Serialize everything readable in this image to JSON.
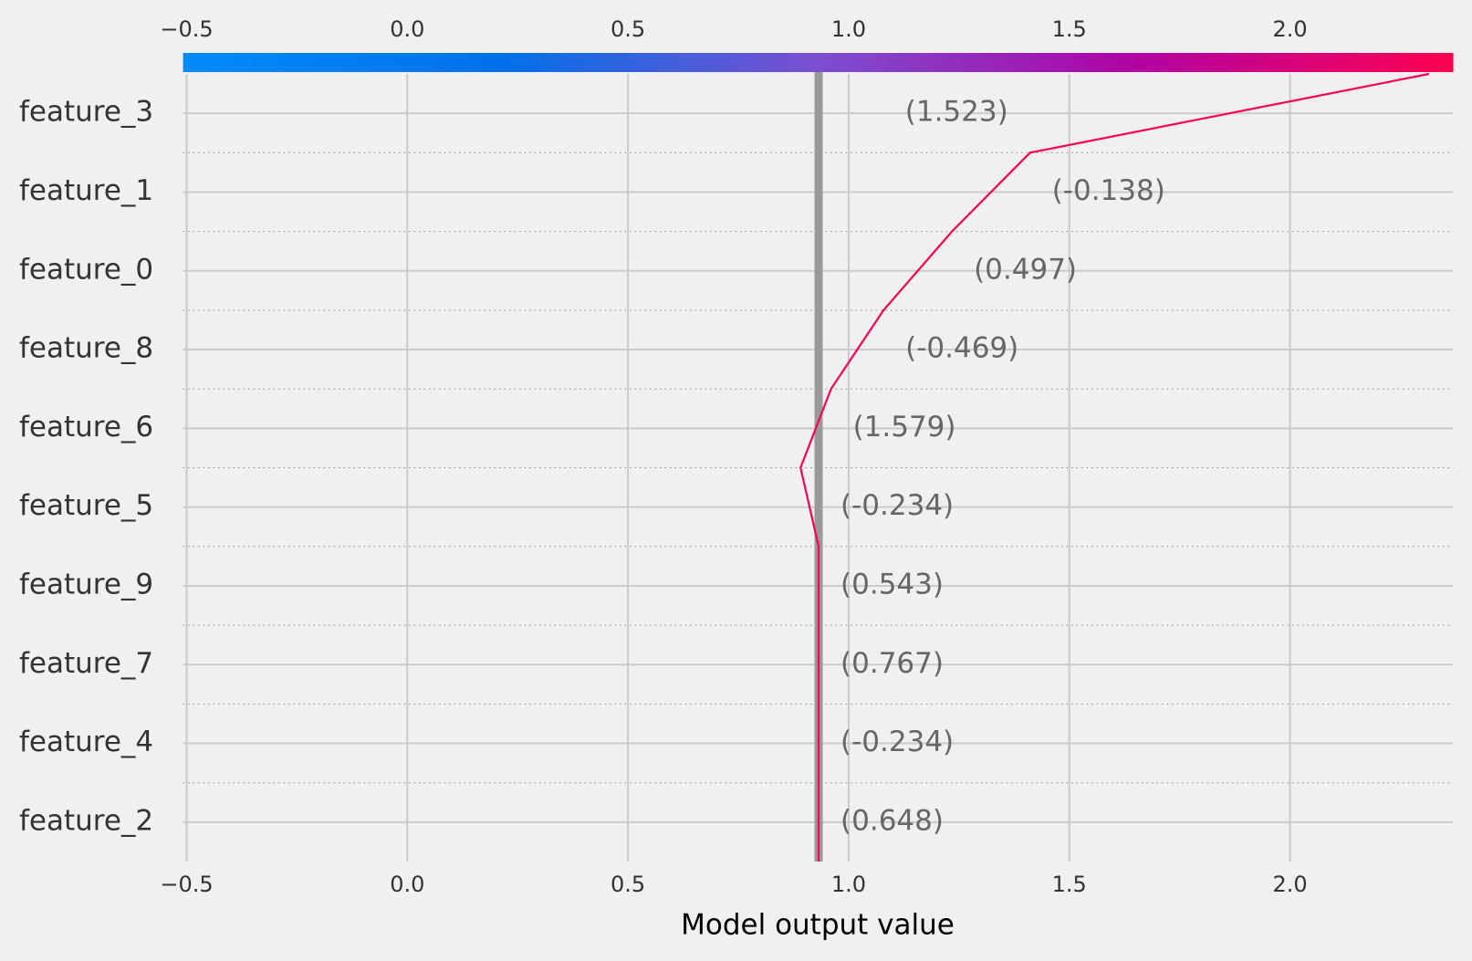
{
  "chart_data": {
    "type": "decision",
    "xlabel": "Model output value",
    "features": [
      "feature_3",
      "feature_1",
      "feature_0",
      "feature_8",
      "feature_6",
      "feature_5",
      "feature_9",
      "feature_7",
      "feature_4",
      "feature_2"
    ],
    "feature_values": [
      1.523,
      -0.138,
      0.497,
      -0.469,
      1.579,
      -0.234,
      0.543,
      0.767,
      -0.234,
      0.648
    ],
    "value_labels": [
      "(1.523)",
      "(-0.138)",
      "(0.497)",
      "(-0.469)",
      "(1.579)",
      "(-0.234)",
      "(0.543)",
      "(0.767)",
      "(-0.234)",
      "(0.648)"
    ],
    "base_value": 0.932,
    "values": [
      2.315,
      1.411,
      1.234,
      1.079,
      0.96,
      0.891,
      0.932,
      0.932,
      0.932,
      0.932
    ],
    "line_color": "#ff0052",
    "base_color": "#999999",
    "colormap": [
      "#008bfb",
      "#0071e8",
      "#7b4fd0",
      "#b003a3",
      "#ff0051"
    ],
    "xlim": [
      -0.508,
      2.37
    ],
    "xticks": [
      {
        "value": -0.5,
        "label": "−0.5"
      },
      {
        "value": 0,
        "label": "0.0"
      },
      0.5,
      {
        "value": 1,
        "label": "1.0"
      },
      1.5,
      {
        "value": 2,
        "label": "2.0"
      }
    ],
    "grid": true
  }
}
